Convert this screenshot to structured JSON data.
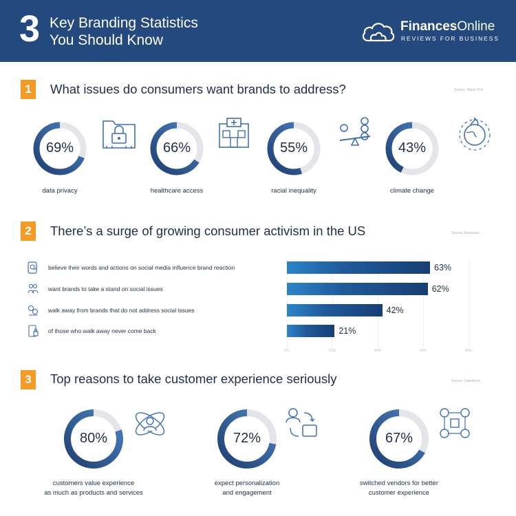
{
  "header": {
    "number": "3",
    "title_line1": "Key Branding Statistics",
    "title_line2": "You Should Know",
    "brand_name_bold": "Finances",
    "brand_name_rest": "Online",
    "brand_tagline": "REVIEWS FOR BUSINESS"
  },
  "section1": {
    "number": "1",
    "title": "What issues do consumers want brands to address?",
    "source": "Source: Harris Poll",
    "items": [
      {
        "value": "69%",
        "fraction": 0.69,
        "label": "data privacy",
        "icon": "folder-lock-icon"
      },
      {
        "value": "66%",
        "fraction": 0.66,
        "label": "healthcare access",
        "icon": "hospital-icon"
      },
      {
        "value": "55%",
        "fraction": 0.55,
        "label": "racial inequality",
        "icon": "balance-seesaw-icon"
      },
      {
        "value": "43%",
        "fraction": 0.43,
        "label": "climate change",
        "icon": "burning-earth-icon"
      }
    ]
  },
  "section2": {
    "number": "2",
    "title": "There’s a surge of growing consumer activism in the US",
    "source": "Source: Accenture",
    "rows": [
      {
        "label": "believe their words and actions on social media influence brand reaction",
        "value": "63%",
        "percent": 63,
        "icon": "social-media-icon"
      },
      {
        "label": "want brands to take a stand on social issues",
        "value": "62%",
        "percent": 62,
        "icon": "people-stand-icon"
      },
      {
        "label": "walk away from brands that do not address social issues",
        "value": "42%",
        "percent": 42,
        "icon": "walk-away-icon"
      },
      {
        "label": "of those who walk away never come back",
        "value": "21%",
        "percent": 21,
        "icon": "phone-lock-icon"
      }
    ],
    "axis_ticks": [
      "0%",
      "20%",
      "40%",
      "60%",
      "80%"
    ]
  },
  "section3": {
    "number": "3",
    "title": "Top reasons to take customer experience seriously",
    "source": "Source: Salesforce",
    "items": [
      {
        "value": "80%",
        "fraction": 0.8,
        "label_line1": "customers value experience",
        "label_line2": "as much as products and services",
        "icon": "orbit-person-icon"
      },
      {
        "value": "72%",
        "fraction": 0.72,
        "label_line1": "expect personalization",
        "label_line2": "and engagement",
        "icon": "user-switch-icon"
      },
      {
        "value": "67%",
        "fraction": 0.67,
        "label_line1": "switched vendors for better",
        "label_line2": "customer experience",
        "icon": "vendor-grid-icon"
      }
    ]
  },
  "colors": {
    "header_bg": "#24497f",
    "accent_orange": "#f39b24",
    "ring_track": "#e3e5e9",
    "ring_fill_dark": "#1f3f72",
    "ring_fill_light": "#4b82c0",
    "icon_blue": "#3d6fb3"
  }
}
